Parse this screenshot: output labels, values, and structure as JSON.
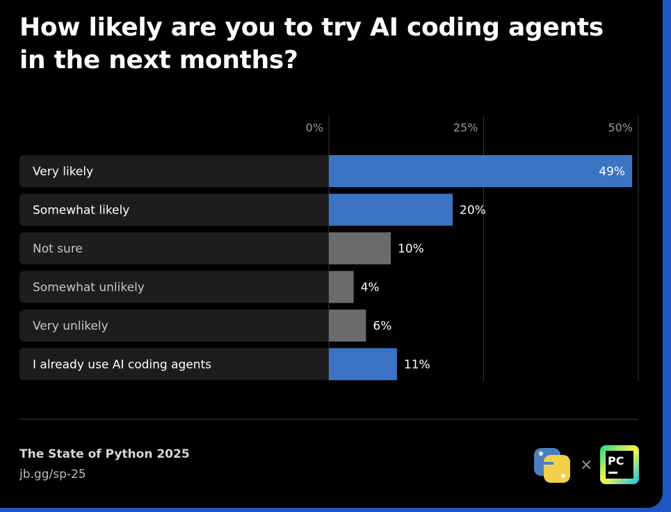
{
  "chart_data": {
    "type": "bar",
    "orientation": "horizontal",
    "title": "How likely are you to try AI coding agents in the next months?",
    "categories": [
      "Very likely",
      "Somewhat likely",
      "Not sure",
      "Somewhat unlikely",
      "Very unlikely",
      "I already use AI coding agents"
    ],
    "values": [
      49,
      20,
      10,
      4,
      6,
      11
    ],
    "value_labels": [
      "49%",
      "20%",
      "10%",
      "4%",
      "6%",
      "11%"
    ],
    "bar_colors": [
      "#3b73c5",
      "#3b73c5",
      "#6b6b6b",
      "#6b6b6b",
      "#6b6b6b",
      "#3b73c5"
    ],
    "label_colors": [
      "#ffffff",
      "#ffffff",
      "#c9c9c9",
      "#c9c9c9",
      "#c9c9c9",
      "#ffffff"
    ],
    "xlim": [
      0,
      50
    ],
    "xticks": [
      0,
      25,
      50
    ],
    "xtick_labels": [
      "0%",
      "25%",
      "50%"
    ],
    "grid": true
  },
  "footer": {
    "title": "The State of Python 2025",
    "link": "jb.gg/sp-25",
    "separator": "×"
  },
  "logos": {
    "left": "python-logo",
    "right": "pycharm-logo",
    "pycharm_text": "PC"
  },
  "colors": {
    "background": "#000000",
    "accent_blue": "#3b73c5",
    "neutral_bar": "#6b6b6b",
    "label_box": "#1d1d1d",
    "outer_frame": "#1f56c4"
  }
}
